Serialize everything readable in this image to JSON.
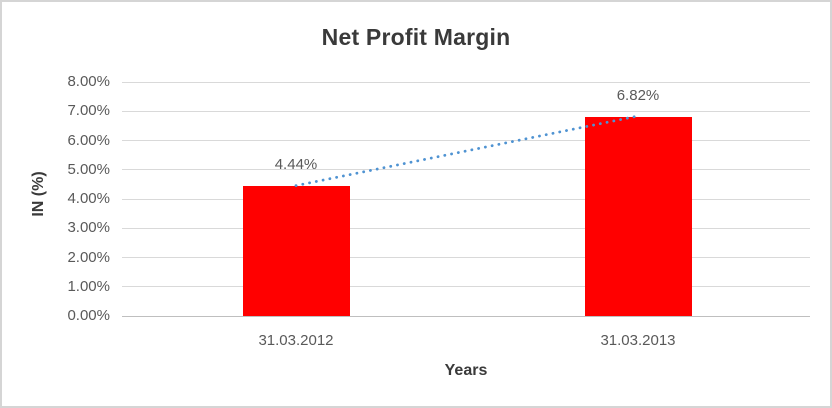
{
  "window": {
    "background": "#ffffff",
    "border_color": "#d5d5d5"
  },
  "chart_data": {
    "type": "bar",
    "title": "Net Profit Margin",
    "xlabel": "Years",
    "ylabel": "IN (%)",
    "categories": [
      "31.03.2012",
      "31.03.2013"
    ],
    "values": [
      4.44,
      6.82
    ],
    "data_labels": [
      "4.44%",
      "6.82%"
    ],
    "ylim": [
      0,
      8
    ],
    "ytick_step": 1,
    "ytick_labels": [
      "0.00%",
      "1.00%",
      "2.00%",
      "3.00%",
      "4.00%",
      "5.00%",
      "6.00%",
      "7.00%",
      "8.00%"
    ],
    "grid": true,
    "legend": "none",
    "bar_color": "#ff0000",
    "grid_color": "#d9d9d9",
    "axis_line_color": "#bfbfbf",
    "tick_text_color": "#595959",
    "title_text_color": "#3a3a3a",
    "trendline": {
      "type": "linear",
      "style": "dotted",
      "color": "#4f93d2",
      "from_value": 4.44,
      "to_value": 6.82
    }
  }
}
